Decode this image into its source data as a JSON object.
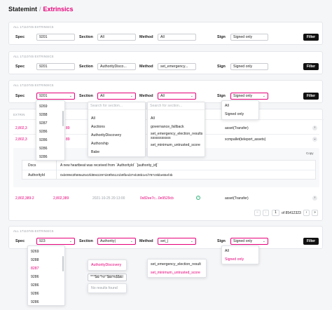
{
  "breadcrumb": {
    "root": "Statemint",
    "separator": "/",
    "current": "Extrinsics"
  },
  "labels": {
    "spec": "Spec",
    "section": "Section",
    "method": "Method",
    "sign": "Sign",
    "filter": "Filter"
  },
  "panels": [
    {
      "caption": "ALL 17110745 EXTRINSICS",
      "spec": "9201",
      "section": "All",
      "method": "All",
      "sign": "Signed only"
    },
    {
      "caption": "ALL 17110745 EXTRINSICS",
      "spec": "9201",
      "section": "AuthorityDisco...",
      "method": "set_emergency...",
      "sign": "Signed only"
    },
    {
      "caption": "ALL 17110745 EXTRINSICS",
      "spec": "9201",
      "section": "All",
      "method": "All",
      "sign": "Signed only"
    },
    {
      "caption": "ALL 17110745 EXTRINSICS",
      "spec": "923",
      "section": "Authority|",
      "method": "set_|",
      "sign": "Signed only"
    }
  ],
  "dropdowns3": {
    "spec": [
      "9269",
      "9288",
      "9287",
      "9286",
      "9286",
      "9286",
      "9286"
    ],
    "section_search": "Search for section...",
    "section": [
      "All",
      "Auctions",
      "AuthorityDiscovery",
      "Authorship",
      "Babe"
    ],
    "method_search": "Search for section...",
    "method": [
      "All",
      "governance_fallback",
      "set_emergency_election_results",
      "sssssssssss",
      "set_minimum_untrusted_score"
    ],
    "sign": [
      "All",
      "Signed only"
    ]
  },
  "dropdowns4": {
    "spec": [
      "9269",
      "9288",
      "8287",
      "9286",
      "9286",
      "9286",
      "9286"
    ],
    "section": [
      "AuthorityDiscovery"
    ],
    "section_special": "*^*$&^%!^$&I%$$&I",
    "section_empty": "No results found",
    "method": [
      "set_emergency_election_result",
      "set_minimum_untrusted_score"
    ],
    "sign": [
      "All",
      "Signed only"
    ]
  },
  "table": {
    "header_fragment": "EXTRIN",
    "rows": [
      {
        "id": "2,802,3",
        "tail": "89",
        "call": "asset(Transfer)"
      },
      {
        "id": "2,802,3",
        "tail": "89",
        "call": "xcmpallet(teleport_assets)"
      }
    ],
    "detail": {
      "copy": "Copy",
      "docs_label": "Docs",
      "docs_value": "A new heartbeat was received from `AuthorityId` `[authority_id]`",
      "authority_label": "AuthorityId",
      "authority_value": "0xb09943f589a2542fd8942297d49f55121b9fbed37eb38b1e1f787c9bbe65ef4b"
    },
    "last_row": {
      "id": "2,802,389-2",
      "block": "2,802,389",
      "time": "2021-10-25 20:13:00",
      "hash": "0x82ee7c...0e9529cb",
      "call": "asset(Transfer)"
    },
    "pager": {
      "page": "1",
      "of": "of 85412323"
    }
  }
}
